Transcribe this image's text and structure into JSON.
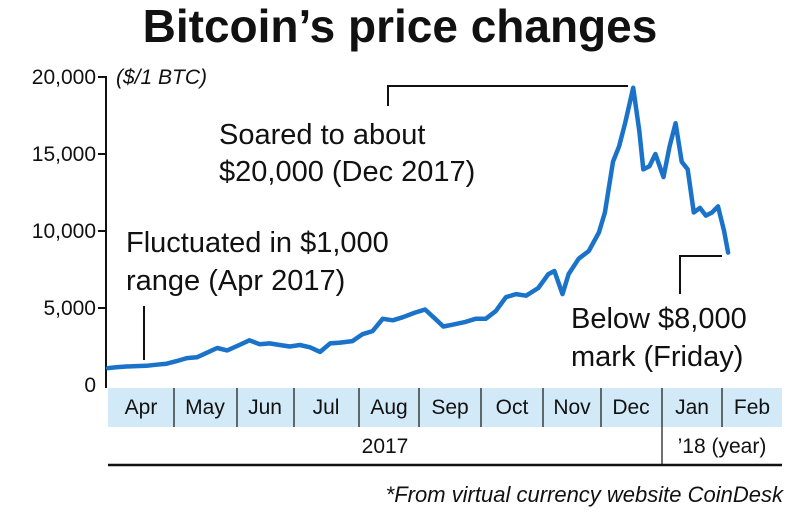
{
  "chart_data": {
    "type": "line",
    "title": "Bitcoin’s price changes",
    "unit_label": "($/1 BTC)",
    "y_ticks": [
      "20,000",
      "15,000",
      "10,000",
      "5,000",
      "0"
    ],
    "y_tick_values": [
      20000,
      15000,
      10000,
      5000,
      0
    ],
    "ylim": [
      0,
      20000
    ],
    "months": [
      "Apr",
      "May",
      "Jun",
      "Jul",
      "Aug",
      "Sep",
      "Oct",
      "Nov",
      "Dec",
      "Jan",
      "Feb"
    ],
    "year_labels": [
      "2017",
      "’18 (year)"
    ],
    "series": [
      {
        "x": [
          "2017-04-01",
          "2017-04-05",
          "2017-04-10",
          "2017-04-15",
          "2017-04-20",
          "2017-04-25",
          "2017-04-30",
          "2017-05-05",
          "2017-05-10",
          "2017-05-15",
          "2017-05-20",
          "2017-05-25",
          "2017-05-30",
          "2017-06-05",
          "2017-06-10",
          "2017-06-15",
          "2017-06-20",
          "2017-06-25",
          "2017-06-30",
          "2017-07-05",
          "2017-07-10",
          "2017-07-15",
          "2017-07-20",
          "2017-07-25",
          "2017-07-31",
          "2017-08-05",
          "2017-08-10",
          "2017-08-15",
          "2017-08-20",
          "2017-08-25",
          "2017-08-31",
          "2017-09-05",
          "2017-09-10",
          "2017-09-14",
          "2017-09-18",
          "2017-09-25",
          "2017-09-30",
          "2017-10-05",
          "2017-10-10",
          "2017-10-15",
          "2017-10-20",
          "2017-10-25",
          "2017-10-31",
          "2017-11-05",
          "2017-11-08",
          "2017-11-12",
          "2017-11-15",
          "2017-11-20",
          "2017-11-25",
          "2017-11-30",
          "2017-12-03",
          "2017-12-07",
          "2017-12-10",
          "2017-12-13",
          "2017-12-17",
          "2017-12-20",
          "2017-12-22",
          "2017-12-25",
          "2017-12-28",
          "2018-01-01",
          "2018-01-04",
          "2018-01-07",
          "2018-01-10",
          "2018-01-13",
          "2018-01-16",
          "2018-01-19",
          "2018-01-22",
          "2018-01-25",
          "2018-01-28",
          "2018-01-31",
          "2018-02-02"
        ],
        "y": [
          1100,
          1150,
          1200,
          1230,
          1250,
          1320,
          1380,
          1550,
          1750,
          1800,
          2100,
          2400,
          2250,
          2600,
          2900,
          2650,
          2700,
          2600,
          2500,
          2600,
          2450,
          2150,
          2700,
          2750,
          2850,
          3300,
          3500,
          4300,
          4200,
          4400,
          4700,
          4900,
          4300,
          3800,
          3900,
          4100,
          4300,
          4300,
          4800,
          5700,
          5900,
          5800,
          6300,
          7200,
          7400,
          5900,
          7200,
          8200,
          8700,
          9900,
          11200,
          14500,
          15500,
          17000,
          19300,
          16500,
          14000,
          14200,
          15000,
          13500,
          15500,
          17000,
          14500,
          14000,
          11200,
          11500,
          11000,
          11200,
          11600,
          10000,
          8600
        ],
        "line_color": "#1a73c9"
      }
    ],
    "annotations": [
      {
        "lines": [
          "Fluctuated in $1,000",
          "range (Apr 2017)"
        ]
      },
      {
        "lines": [
          "Soared to about",
          "$20,000 (Dec 2017)"
        ]
      },
      {
        "lines": [
          "Below $8,000",
          "mark (Friday)"
        ]
      }
    ],
    "source_note": "*From virtual currency website CoinDesk",
    "colors": {
      "month_band": "#d2e9f7",
      "line": "#1a73c9",
      "text": "#111111"
    }
  }
}
